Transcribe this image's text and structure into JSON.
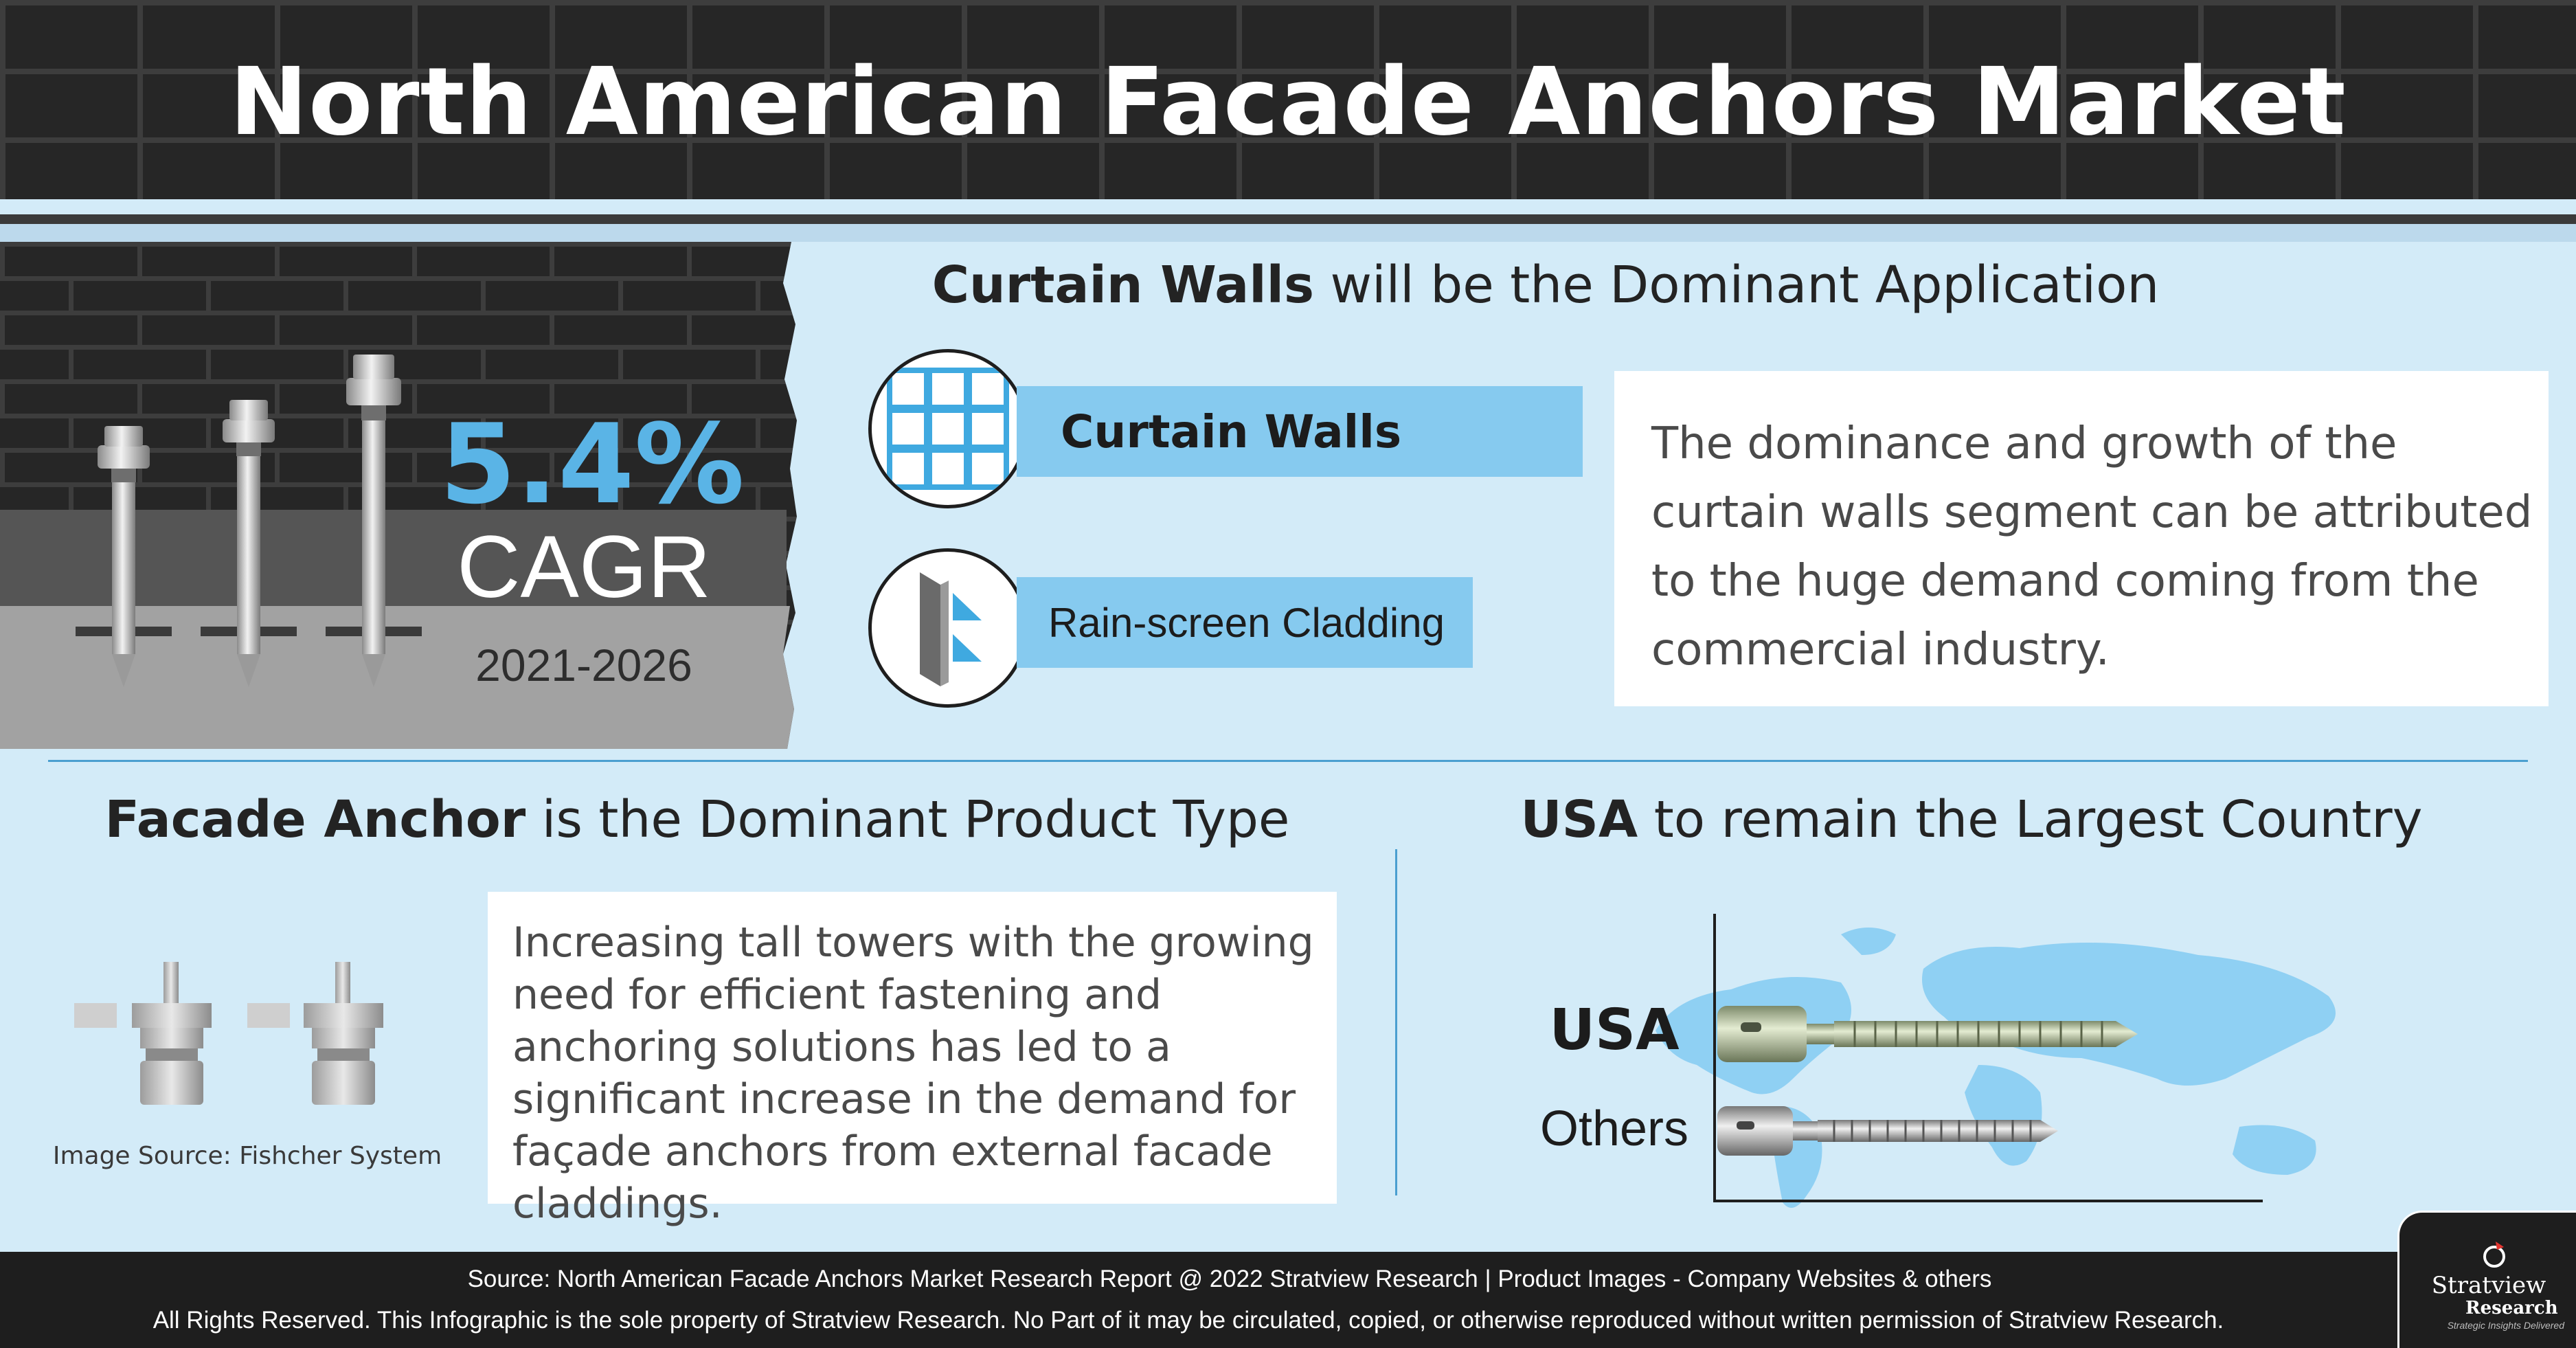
{
  "header": {
    "title": "North American Facade Anchors Market"
  },
  "cagr": {
    "value": "5.4%",
    "label": "CAGR",
    "years": "2021-2026"
  },
  "application": {
    "heading_bold": "Curtain Walls",
    "heading_rest": "will be the Dominant Application",
    "segments": [
      {
        "label": "Curtain Walls",
        "icon": "grid-window-icon"
      },
      {
        "label": "Rain-screen Cladding",
        "icon": "cladding-panel-icon"
      }
    ],
    "description": "The dominance and growth of the curtain walls segment can be attributed to the huge demand coming from the commercial industry."
  },
  "product": {
    "heading_bold": "Facade Anchor",
    "heading_rest": "is the Dominant Product Type",
    "image_source": "Image Source: Fishcher System",
    "description": "Increasing tall towers with the growing need for efficient fastening and anchoring solutions has led to a significant increase in the demand for façade anchors from external facade claddings."
  },
  "country": {
    "heading_bold": "USA",
    "heading_rest": "to remain the Largest Country",
    "labels": [
      "USA",
      "Others"
    ]
  },
  "footer": {
    "source": "Source: North American Facade Anchors Market Research Report @ 2022 Stratview Research | Product Images  - Company Websites & others",
    "rights": "All Rights Reserved. This Infographic is the sole property of Stratview Research. No Part of it may be circulated, copied, or otherwise reproduced without written permission of Stratview Research."
  },
  "logo": {
    "name": "Stratview",
    "sub": "Research",
    "tagline": "Strategic Insights Delivered"
  },
  "colors": {
    "accent_blue": "#5ab4e6",
    "bar_blue": "#86caef",
    "background": "#d3ebf8",
    "dark": "#262626"
  }
}
